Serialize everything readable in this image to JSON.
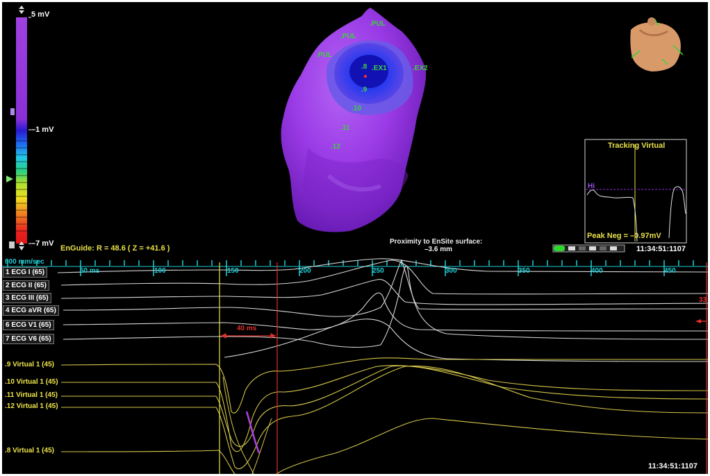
{
  "scale": {
    "top_label": "5 mV",
    "mid_label": "–1 mV",
    "bottom_label": "–7 mV"
  },
  "map": {
    "labels": [
      ".PUL",
      ".PUL",
      ".PUL",
      ".EX1",
      ".EX2",
      ".8",
      ".9",
      ".10",
      ".11",
      ".12"
    ]
  },
  "tracking": {
    "title": "Tracking Virtual",
    "hi_label": "Hi",
    "peak": "Peak Neg = –0.97mV"
  },
  "enguide": "EnGuide: R = 48.6  ( Z = +41.6 )",
  "proximity": {
    "line1": "Proximity to EnSite surface:",
    "line2": "–3.6 mm"
  },
  "clock_top": "11:34:51:1107",
  "clock_bottom": "11:34:51:1107",
  "timeline": {
    "speed": "800 mm/sec",
    "ticks": [
      "50 ms",
      "100",
      "150",
      "200",
      "250",
      "300",
      "350",
      "400",
      "450"
    ]
  },
  "interval": "40 ms",
  "right_marker": "33",
  "channels": {
    "ecg": [
      "1  ECG I (65)",
      "2  ECG II (65)",
      "3  ECG III (65)",
      "4  ECG aVR (65)",
      "6  ECG V1 (65)",
      "7  ECG V6 (65)"
    ],
    "virtual": [
      ".9  Virtual 1 (45)",
      ".10  Virtual 1 (45)",
      ".11  Virtual 1 (45)",
      ".12  Virtual 1 (45)",
      ".8  Virtual 1 (45)"
    ]
  },
  "colors": {
    "background": "#000000",
    "ecg_trace": "#d8d8d8",
    "virtual_trace": "#d6c84a",
    "cursor_yellow": "#e8e04a",
    "cursor_red": "#e0302a",
    "tick_cyan": "#1fd0d8",
    "map_purple": "#9a2ae0",
    "label_green": "#3cd23c"
  },
  "icons": [
    "torso-orientation-icon",
    "scale-slider-icon",
    "zoom-buttons-icon",
    "playback-progress-icon"
  ]
}
